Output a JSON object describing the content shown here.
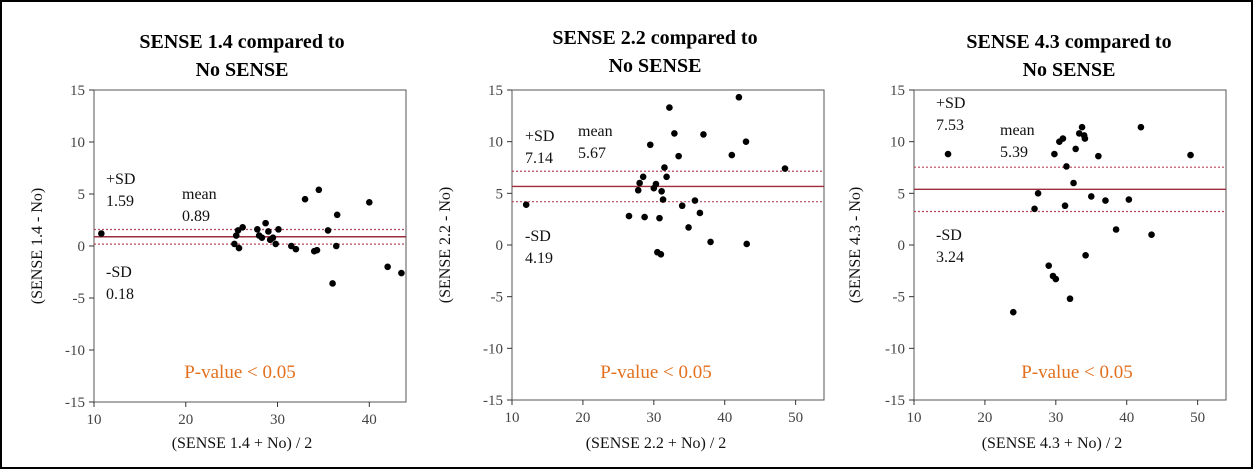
{
  "colors": {
    "mean_line": "#9b2d3c",
    "sd_line": "#b5485a",
    "pvalue_text": "#e2701f",
    "points": "#000000"
  },
  "chart_data": [
    {
      "type": "scatter",
      "title_lines": [
        "SENSE 1.4 compared to",
        "No SENSE"
      ],
      "xlabel": "(SENSE 1.4 + No) / 2",
      "ylabel": "(SENSE 1.4 - No)",
      "xlim": [
        10,
        44
      ],
      "ylim": [
        -15,
        15
      ],
      "xticks": [
        10,
        20,
        30,
        40
      ],
      "xtick_labels": [
        "10",
        "20",
        "30",
        "40"
      ],
      "yticks": [
        15,
        10,
        5,
        0,
        -5,
        -10,
        -15
      ],
      "ytick_labels": [
        "15",
        "10",
        "5",
        "0",
        "-5",
        "-10",
        "-15"
      ],
      "mean": 0.89,
      "upper_sd": 1.59,
      "lower_sd": 0.18,
      "annotations": {
        "upper_sd_label": "+SD",
        "upper_sd_value": "1.59",
        "mean_label": "mean",
        "mean_value": "0.89",
        "lower_sd_label": "-SD",
        "lower_sd_value": "0.18",
        "pvalue": "P-value < 0.05"
      },
      "points": [
        [
          10.8,
          1.2
        ],
        [
          25.3,
          0.2
        ],
        [
          25.5,
          1.0
        ],
        [
          25.7,
          1.5
        ],
        [
          25.8,
          -0.2
        ],
        [
          26.2,
          1.8
        ],
        [
          27.8,
          1.6
        ],
        [
          28.0,
          1.0
        ],
        [
          28.3,
          0.8
        ],
        [
          28.7,
          2.2
        ],
        [
          29.0,
          1.4
        ],
        [
          29.2,
          0.6
        ],
        [
          29.5,
          0.8
        ],
        [
          29.8,
          0.2
        ],
        [
          30.1,
          1.6
        ],
        [
          31.5,
          0.0
        ],
        [
          32.0,
          -0.3
        ],
        [
          33.0,
          4.5
        ],
        [
          34.0,
          -0.5
        ],
        [
          34.3,
          -0.4
        ],
        [
          34.5,
          5.4
        ],
        [
          35.5,
          1.5
        ],
        [
          36.0,
          -3.6
        ],
        [
          36.4,
          0.0
        ],
        [
          36.5,
          3.0
        ],
        [
          40.0,
          4.2
        ],
        [
          42.0,
          -2.0
        ],
        [
          43.5,
          -2.6
        ]
      ]
    },
    {
      "type": "scatter",
      "title_lines": [
        "SENSE 2.2 compared to",
        "No SENSE"
      ],
      "xlabel": "(SENSE 2.2 + No) / 2",
      "ylabel": "(SENSE 2.2 - No)",
      "xlim": [
        10,
        54
      ],
      "ylim": [
        -15,
        15
      ],
      "xticks": [
        10,
        20,
        30,
        40,
        50
      ],
      "xtick_labels": [
        "10",
        "20",
        "30",
        "40",
        "50"
      ],
      "yticks": [
        15,
        10,
        5,
        0,
        -5,
        -10,
        -15
      ],
      "ytick_labels": [
        "15",
        "10",
        "5",
        "0",
        "-5",
        "-10",
        "-15"
      ],
      "mean": 5.67,
      "upper_sd": 7.14,
      "lower_sd": 4.19,
      "annotations": {
        "upper_sd_label": "+SD",
        "upper_sd_value": "7.14",
        "mean_label": "mean",
        "mean_value": "5.67",
        "lower_sd_label": "-SD",
        "lower_sd_value": "4.19",
        "pvalue": "P-value < 0.05"
      },
      "points": [
        [
          12.0,
          3.9
        ],
        [
          26.5,
          2.8
        ],
        [
          27.8,
          5.3
        ],
        [
          28.0,
          6.0
        ],
        [
          28.5,
          6.6
        ],
        [
          28.7,
          2.7
        ],
        [
          29.5,
          9.7
        ],
        [
          30.0,
          5.5
        ],
        [
          30.3,
          5.9
        ],
        [
          30.5,
          -0.7
        ],
        [
          30.8,
          2.6
        ],
        [
          31.0,
          -0.9
        ],
        [
          31.1,
          5.2
        ],
        [
          31.3,
          4.4
        ],
        [
          31.5,
          7.5
        ],
        [
          31.8,
          6.6
        ],
        [
          32.2,
          13.3
        ],
        [
          32.9,
          10.8
        ],
        [
          33.5,
          8.6
        ],
        [
          34.0,
          3.8
        ],
        [
          34.9,
          1.7
        ],
        [
          35.8,
          4.3
        ],
        [
          36.5,
          3.1
        ],
        [
          37.0,
          10.7
        ],
        [
          38.0,
          0.3
        ],
        [
          41.0,
          8.7
        ],
        [
          42.0,
          14.3
        ],
        [
          43.0,
          10.0
        ],
        [
          43.1,
          0.1
        ],
        [
          48.5,
          7.4
        ]
      ]
    },
    {
      "type": "scatter",
      "title_lines": [
        "SENSE 4.3 compared to",
        "No SENSE"
      ],
      "xlabel": "(SENSE 4.3 + No) / 2",
      "ylabel": "(SENSE 4.3 - No)",
      "xlim": [
        10,
        54
      ],
      "ylim": [
        -15,
        15
      ],
      "xticks": [
        10,
        20,
        30,
        40,
        50
      ],
      "xtick_labels": [
        "10",
        "20",
        "30",
        "40",
        "50"
      ],
      "yticks": [
        15,
        10,
        5,
        0,
        -5,
        -10,
        -15
      ],
      "ytick_labels": [
        "15",
        "10",
        "5",
        "0",
        "-5",
        "-10",
        "-15"
      ],
      "mean": 5.39,
      "upper_sd": 7.53,
      "lower_sd": 3.24,
      "annotations": {
        "upper_sd_label": "+SD",
        "upper_sd_value": "7.53",
        "mean_label": "mean",
        "mean_value": "5.39",
        "lower_sd_label": "-SD",
        "lower_sd_value": "3.24",
        "pvalue": "P-value < 0.05"
      },
      "points": [
        [
          14.8,
          8.8
        ],
        [
          24.0,
          -6.5
        ],
        [
          27.0,
          3.5
        ],
        [
          27.5,
          5.0
        ],
        [
          29.0,
          -2.0
        ],
        [
          29.6,
          -3.0
        ],
        [
          29.8,
          8.8
        ],
        [
          30.0,
          -3.3
        ],
        [
          30.5,
          10.0
        ],
        [
          31.0,
          10.3
        ],
        [
          31.3,
          3.8
        ],
        [
          31.5,
          7.6
        ],
        [
          32.0,
          -5.2
        ],
        [
          32.5,
          6.0
        ],
        [
          32.8,
          9.3
        ],
        [
          33.3,
          10.8
        ],
        [
          33.7,
          11.4
        ],
        [
          34.0,
          10.6
        ],
        [
          34.1,
          10.3
        ],
        [
          34.2,
          -1.0
        ],
        [
          35.0,
          4.7
        ],
        [
          36.0,
          8.6
        ],
        [
          37.0,
          4.3
        ],
        [
          38.5,
          1.5
        ],
        [
          40.3,
          4.4
        ],
        [
          42.0,
          11.4
        ],
        [
          43.5,
          1.0
        ],
        [
          49.0,
          8.7
        ]
      ]
    }
  ]
}
